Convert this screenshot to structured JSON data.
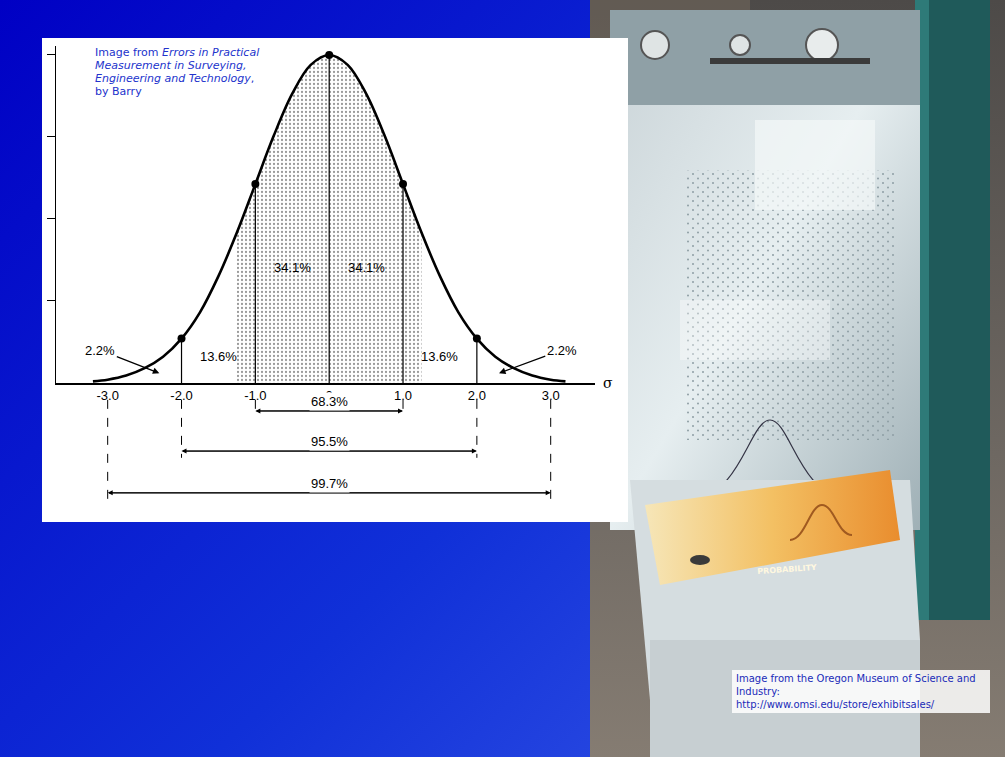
{
  "chart_data": {
    "type": "line",
    "x": [
      -3.2,
      -3.0,
      -2.75,
      -2.5,
      -2.25,
      -2.0,
      -1.75,
      -1.5,
      -1.25,
      -1.0,
      -0.75,
      -0.5,
      -0.25,
      0,
      0.25,
      0.5,
      0.75,
      1.0,
      1.25,
      1.5,
      1.75,
      2.0,
      2.25,
      2.5,
      2.75,
      3.0,
      3.2
    ],
    "values": [
      0.002,
      0.004,
      0.009,
      0.018,
      0.032,
      0.054,
      0.086,
      0.13,
      0.183,
      0.242,
      0.301,
      0.352,
      0.387,
      0.399,
      0.387,
      0.352,
      0.301,
      0.242,
      0.183,
      0.13,
      0.086,
      0.054,
      0.032,
      0.018,
      0.009,
      0.004,
      0.002
    ],
    "color": "#000000",
    "xlim": [
      -3.7,
      3.6
    ],
    "ylim": [
      0,
      0.41
    ],
    "xticks": [
      {
        "value": -3,
        "label": "-3.0"
      },
      {
        "value": -2,
        "label": "-2.0"
      },
      {
        "value": -1,
        "label": "-1.0"
      },
      0,
      {
        "value": 1,
        "label": "1.0"
      },
      {
        "value": 2,
        "label": "2.0"
      },
      {
        "value": 3,
        "label": "3.0"
      }
    ],
    "yticks": [
      0.1,
      0.2,
      0.3,
      0.4
    ],
    "tick_labels": "x",
    "grid": false,
    "x_label": "σ",
    "shaded_range": [
      -1.25,
      1.25
    ],
    "dividers": [
      -2,
      -1,
      0,
      1,
      2
    ],
    "region_labels": [
      {
        "text": "34.1%",
        "x": -0.5,
        "y": 0.14
      },
      {
        "text": "34.1%",
        "x": 0.5,
        "y": 0.14
      },
      {
        "text": "13.6%",
        "x": -1.5,
        "y": 0.032
      },
      {
        "text": "13.6%",
        "x": 1.5,
        "y": 0.032
      }
    ],
    "tail_labels": [
      {
        "text": "2.2%",
        "x": -3.1,
        "y": 0.04,
        "to_x": -2.3,
        "to_y": 0.012
      },
      {
        "text": "2.2%",
        "x": 3.15,
        "y": 0.04,
        "to_x": 2.3,
        "to_y": 0.012
      }
    ],
    "intervals": [
      {
        "from": -1,
        "to": 1,
        "label": "68.3%"
      },
      {
        "from": -2,
        "to": 2,
        "label": "95.5%"
      },
      {
        "from": -3,
        "to": 3,
        "label": "99.7%"
      }
    ]
  },
  "slide": {
    "source_note": {
      "prefix": "Image from ",
      "title": "Errors in Practical Measurement in Surveying, Engineering and Technology",
      "suffix": ", by Barry"
    },
    "photo": {
      "plaque_title": "PROBABILITY",
      "caption": "Image from the Oregon Museum of Science and Industry:",
      "url": "http://www.omsi.edu/store/exhibitsales/"
    }
  }
}
